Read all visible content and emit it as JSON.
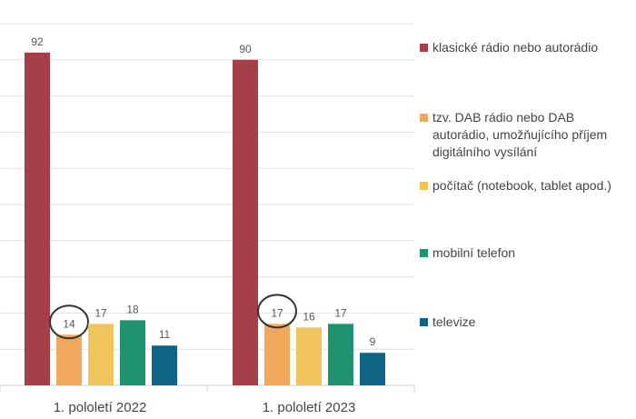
{
  "chart_data": {
    "type": "bar",
    "title": "",
    "xlabel": "",
    "ylabel": "",
    "ylim": [
      0,
      100
    ],
    "grid": true,
    "legend_position": "right",
    "categories": [
      "1. pololetí 2022",
      "1. pololetí 2023"
    ],
    "series": [
      {
        "name": "klasické rádio nebo autorádio",
        "color": "#a5404a",
        "values": [
          92,
          90
        ]
      },
      {
        "name": "tzv. DAB rádio nebo DAB autorádio, umožňujícího příjem digitálního vysílání",
        "color": "#f0a95c",
        "values": [
          14,
          17
        ]
      },
      {
        "name": "počítač (notebook, tablet apod.)",
        "color": "#f0c45c",
        "values": [
          17,
          16
        ]
      },
      {
        "name": "mobilní telefon",
        "color": "#1f9270",
        "values": [
          18,
          17
        ]
      },
      {
        "name": "televize",
        "color": "#0f6485",
        "values": [
          11,
          9
        ]
      }
    ],
    "highlighted_series": "tzv. DAB rádio nebo DAB autorádio, umožňujícího příjem digitálního vysílání"
  },
  "colors": {
    "gridline": "#e0e0e0",
    "axis": "#cfcfcf",
    "highlight_circle": "#333333"
  }
}
